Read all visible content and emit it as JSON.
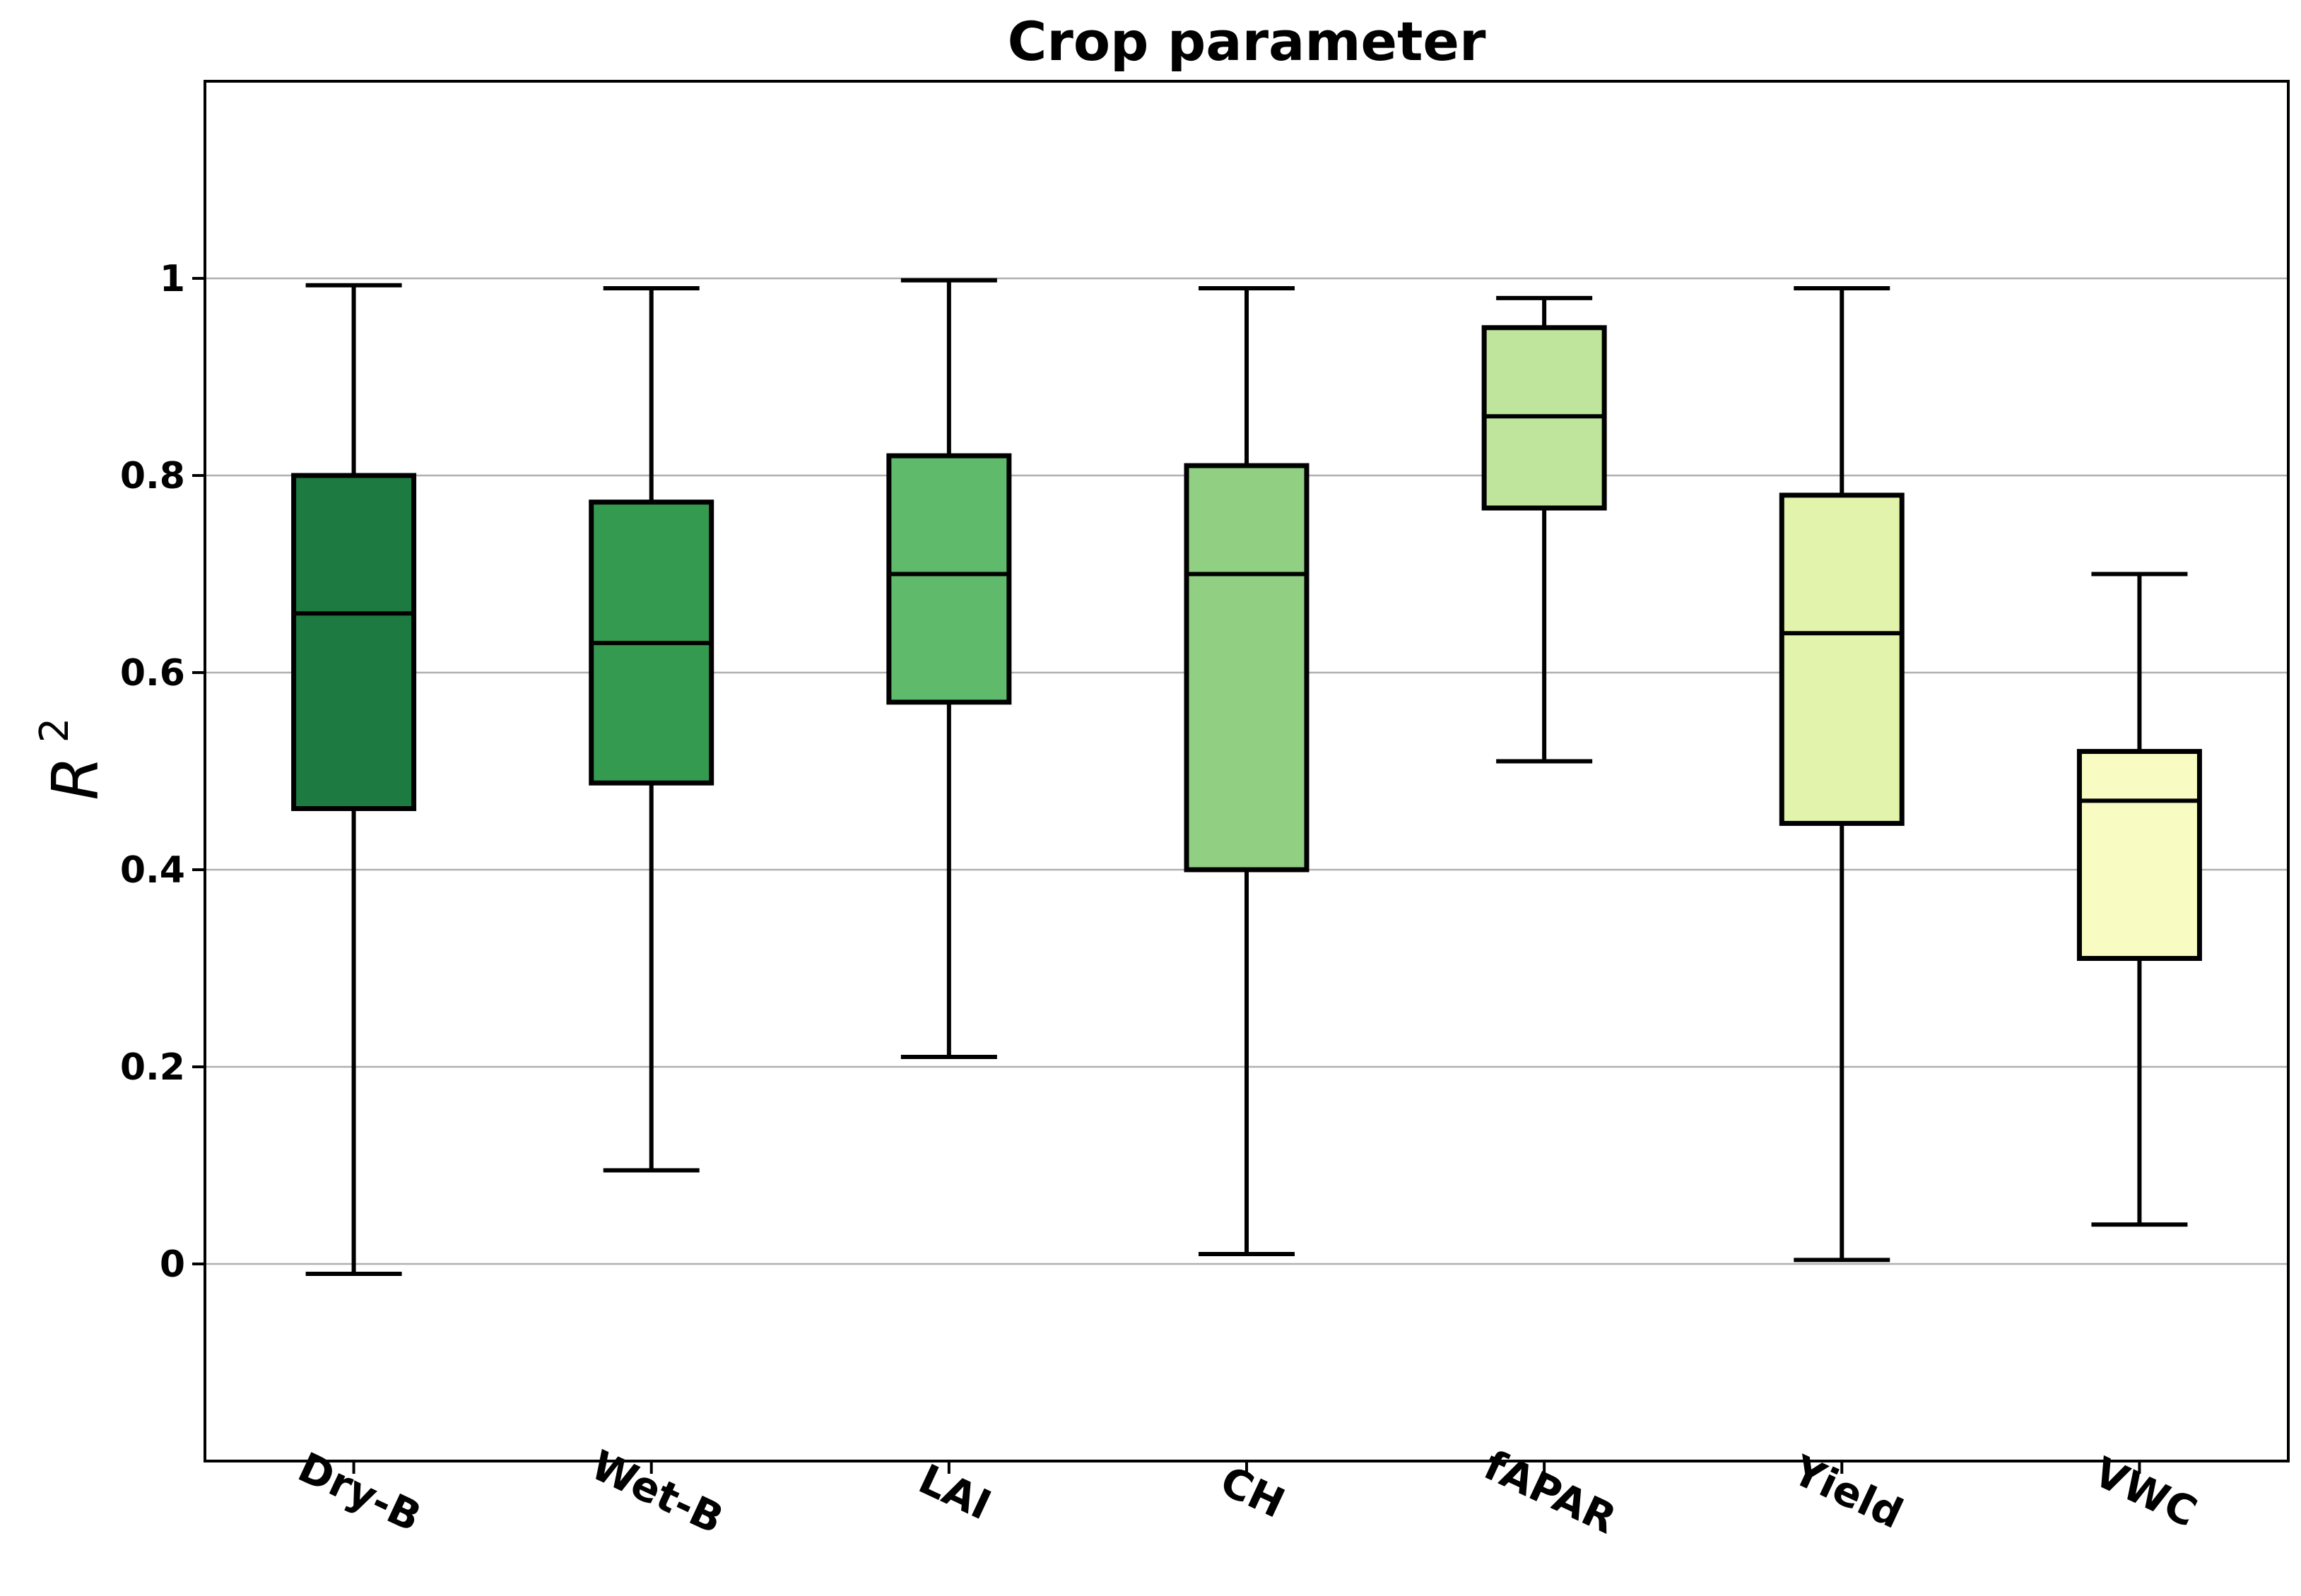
{
  "chart_data": {
    "type": "box",
    "title": "Crop parameter",
    "xlabel": "",
    "ylabel": "R",
    "ylabel_superscript": "2",
    "ylim": [
      -0.2,
      1.2
    ],
    "yticks": [
      0,
      0.2,
      0.4,
      0.6,
      0.8,
      1
    ],
    "ytick_labels": [
      "0",
      "0.2",
      "0.4",
      "0.6",
      "0.8",
      "1"
    ],
    "grid": "horizontal",
    "categories": [
      "Dry-B",
      "Wet-B",
      "LAI",
      "CH",
      "fAPAR",
      "Yield",
      "VWC"
    ],
    "boxes": [
      {
        "name": "Dry-B",
        "whisker_low": -0.01,
        "q1": 0.462,
        "median": 0.66,
        "q3": 0.8,
        "whisker_high": 0.993,
        "color": "#1d7b42"
      },
      {
        "name": "Wet-B",
        "whisker_low": 0.095,
        "q1": 0.488,
        "median": 0.63,
        "q3": 0.773,
        "whisker_high": 0.99,
        "color": "#349a50"
      },
      {
        "name": "LAI",
        "whisker_low": 0.21,
        "q1": 0.57,
        "median": 0.7,
        "q3": 0.82,
        "whisker_high": 0.998,
        "color": "#60ba6c"
      },
      {
        "name": "CH",
        "whisker_low": 0.01,
        "q1": 0.4,
        "median": 0.7,
        "q3": 0.81,
        "whisker_high": 0.99,
        "color": "#91d083"
      },
      {
        "name": "fAPAR",
        "whisker_low": 0.51,
        "q1": 0.767,
        "median": 0.86,
        "q3": 0.95,
        "whisker_high": 0.98,
        "color": "#bfe49b"
      },
      {
        "name": "Yield",
        "whisker_low": 0.004,
        "q1": 0.447,
        "median": 0.64,
        "q3": 0.78,
        "whisker_high": 0.99,
        "color": "#e2f3ab"
      },
      {
        "name": "VWC",
        "whisker_low": 0.04,
        "q1": 0.31,
        "median": 0.47,
        "q3": 0.52,
        "whisker_high": 0.7,
        "color": "#f8fcc2"
      }
    ]
  }
}
